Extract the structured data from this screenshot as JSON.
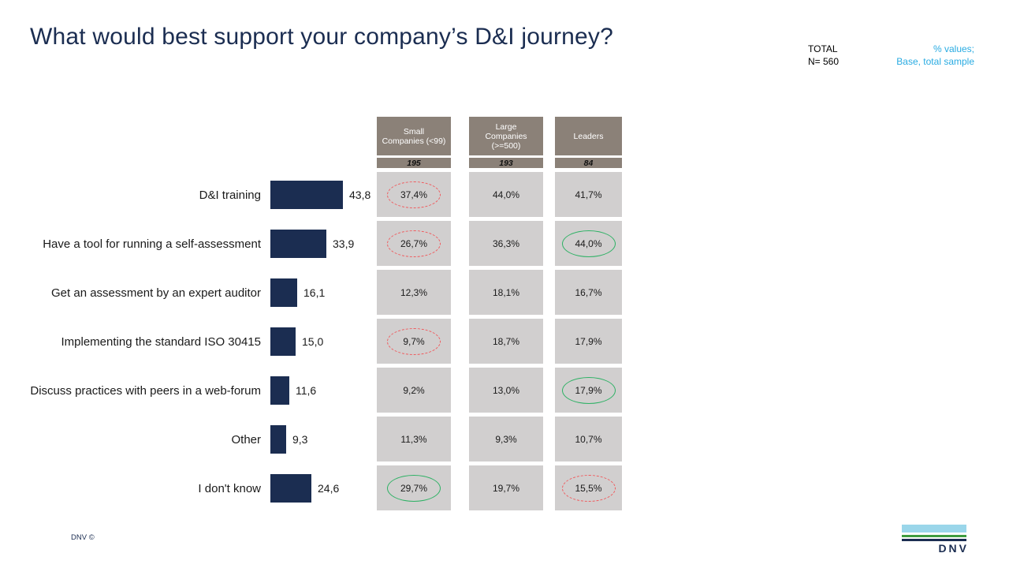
{
  "title": "What would best support your company’s D&I journey?",
  "meta": {
    "total_label": "TOTAL",
    "base_label": "N= 560",
    "note_line1": "% values;",
    "note_line2": "Base, total sample"
  },
  "footer": {
    "copyright": "DNV ©",
    "logo_text": "DNV"
  },
  "colors": {
    "navy": "#1b2d51",
    "cyan": "#29abe2",
    "header_bg": "#8b8178",
    "cell_bg": "#d1cfcf",
    "red_circle": "#f05a5d",
    "green_circle": "#2db164",
    "logo_lightblue": "#9ad6ea",
    "logo_green": "#3e9c3f"
  },
  "chart_data": {
    "type": "bar",
    "title": "What would best support your company’s D&I journey?",
    "subtitle": "% values; Base, total sample (TOTAL N= 560)",
    "orientation": "horizontal",
    "xlim": [
      0,
      50
    ],
    "grid": false,
    "categories": [
      "D&I training",
      "Have a tool for running a self-assessment",
      "Get an assessment by an expert auditor",
      "Implementing the standard ISO 30415",
      "Discuss practices with peers in a web-forum",
      "Other",
      "I don't know"
    ],
    "series": [
      {
        "name": "Total (N= 560)",
        "values": [
          43.8,
          33.9,
          16.1,
          15.0,
          11.6,
          9.3,
          24.6
        ],
        "display": [
          "43,8",
          "33,9",
          "16,1",
          "15,0",
          "11,6",
          "9,3",
          "24,6"
        ]
      }
    ],
    "table": {
      "columns": [
        {
          "header": "Small Companies (<99)",
          "base": "195",
          "values": [
            "37,4%",
            "26,7%",
            "12,3%",
            "9,7%",
            "9,2%",
            "11,3%",
            "29,7%"
          ],
          "highlights": [
            "red",
            "red",
            null,
            "red",
            null,
            null,
            "green"
          ]
        },
        {
          "header": "Large Companies (>=500)",
          "base": "193",
          "values": [
            "44,0%",
            "36,3%",
            "18,1%",
            "18,7%",
            "13,0%",
            "9,3%",
            "19,7%"
          ],
          "highlights": [
            null,
            null,
            null,
            null,
            null,
            null,
            null
          ]
        },
        {
          "header": "Leaders",
          "base": "84",
          "values": [
            "41,7%",
            "44,0%",
            "16,7%",
            "17,9%",
            "17,9%",
            "10,7%",
            "15,5%"
          ],
          "highlights": [
            null,
            "green",
            null,
            null,
            "green",
            null,
            "red"
          ]
        }
      ]
    }
  }
}
